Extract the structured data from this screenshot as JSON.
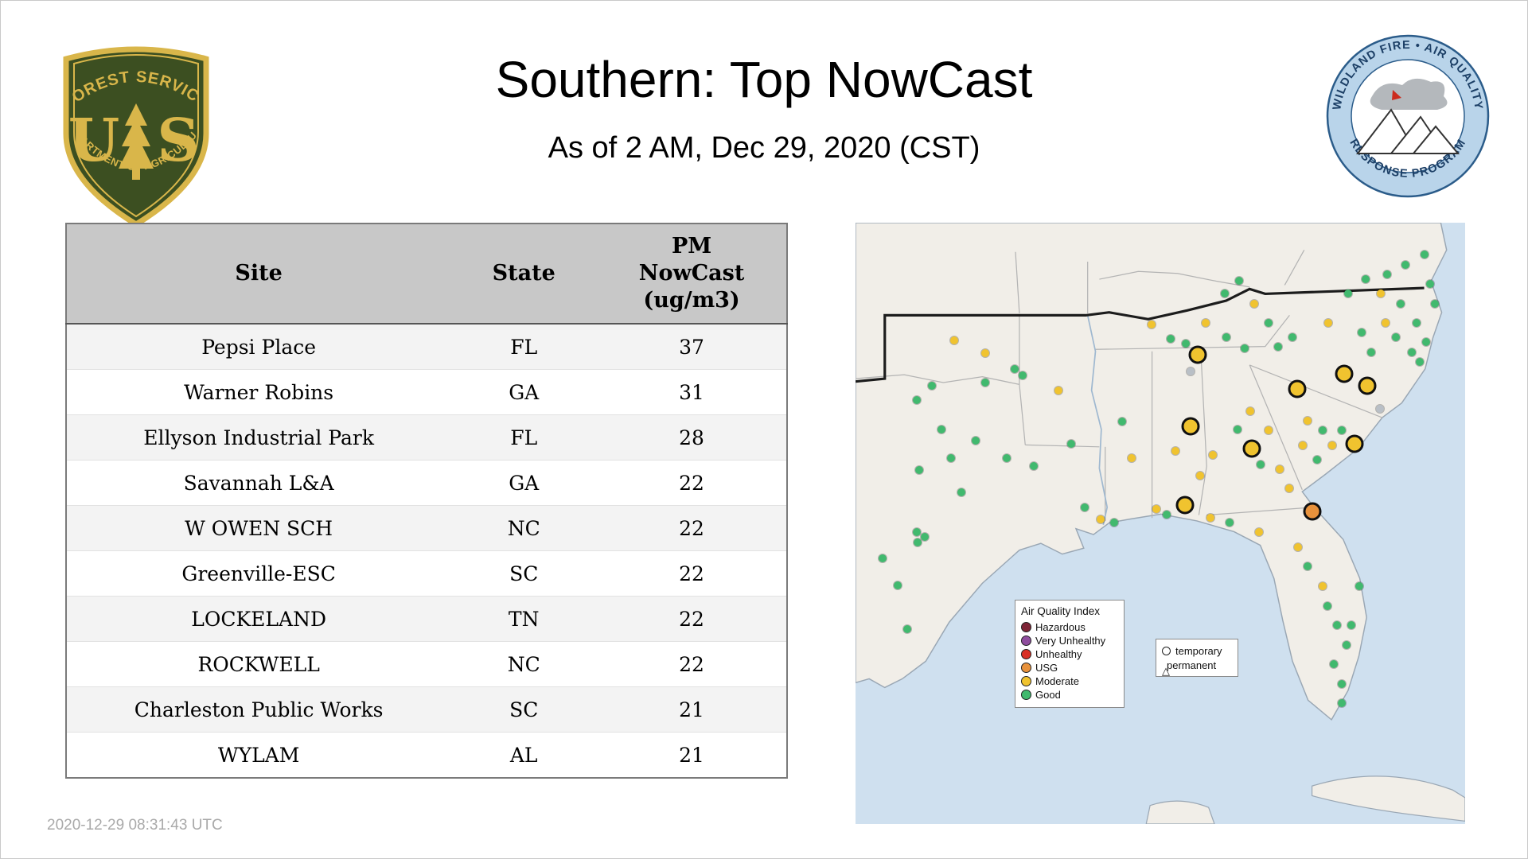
{
  "header": {
    "title": "Southern: Top NowCast",
    "subtitle": "As of  2 AM, Dec 29, 2020 (CST)"
  },
  "logos": {
    "forest_service": {
      "text_top": "FOREST SERVICE",
      "letter_left": "U",
      "letter_right": "S",
      "text_bottom": "DEPARTMENT OF AGRICULTURE",
      "shield_color": "#3c4f21",
      "gold_color": "#d9b64a"
    },
    "airfire": {
      "text_top": "WILDLAND FIRE • AIR QUALITY",
      "text_bottom": "RESPONSE PROGRAM",
      "ring_color": "#b9d4ea",
      "text_color": "#1c3f66"
    }
  },
  "table": {
    "headers": [
      "Site",
      "State",
      "PM\nNowCast\n(ug/m3)"
    ],
    "rows": [
      [
        "Pepsi Place",
        "FL",
        "37"
      ],
      [
        "Warner Robins",
        "GA",
        "31"
      ],
      [
        "Ellyson Industrial Park",
        "FL",
        "28"
      ],
      [
        "Savannah L&A",
        "GA",
        "22"
      ],
      [
        "W OWEN SCH",
        "NC",
        "22"
      ],
      [
        "Greenville-ESC",
        "SC",
        "22"
      ],
      [
        "LOCKELAND",
        "TN",
        "22"
      ],
      [
        "ROCKWELL",
        "NC",
        "22"
      ],
      [
        "Charleston Public Works",
        "SC",
        "21"
      ],
      [
        "WYLAM",
        "AL",
        "21"
      ]
    ]
  },
  "map": {
    "colors": {
      "good": "#41b96e",
      "moderate": "#f0c32f",
      "usg": "#e8923c",
      "nodata": "#b9bfc6"
    },
    "aqi_legend": {
      "title": "Air Quality Index",
      "items": [
        {
          "label": "Hazardous",
          "color": "#7e2436"
        },
        {
          "label": "Very Unhealthy",
          "color": "#8f4d9e"
        },
        {
          "label": "Unhealthy",
          "color": "#d93025"
        },
        {
          "label": "USG",
          "color": "#e8923c"
        },
        {
          "label": "Moderate",
          "color": "#f0c32f"
        },
        {
          "label": "Good",
          "color": "#41b96e"
        }
      ]
    },
    "symbol_legend": {
      "temporary": "temporary",
      "permanent": "permanent"
    },
    "dots": [
      [
        12.5,
        27.1,
        "good"
      ],
      [
        16.2,
        19.6,
        "moderate"
      ],
      [
        21.3,
        21.7,
        "moderate"
      ],
      [
        26.1,
        24.3,
        "good"
      ],
      [
        10.1,
        29.5,
        "good"
      ],
      [
        21.3,
        26.6,
        "good"
      ],
      [
        27.4,
        25.4,
        "good"
      ],
      [
        14.1,
        34.4,
        "good"
      ],
      [
        19.7,
        36.3,
        "good"
      ],
      [
        15.7,
        39.2,
        "good"
      ],
      [
        10.4,
        41.2,
        "good"
      ],
      [
        24.8,
        39.2,
        "good"
      ],
      [
        17.3,
        44.9,
        "good"
      ],
      [
        29.3,
        40.5,
        "good"
      ],
      [
        10.1,
        51.4,
        "good"
      ],
      [
        11.4,
        52.3,
        "good"
      ],
      [
        10.2,
        53.2,
        "good"
      ],
      [
        6.9,
        60.3,
        "good"
      ],
      [
        8.5,
        67.6,
        "good"
      ],
      [
        4.5,
        55.8,
        "good"
      ],
      [
        33.3,
        27.9,
        "moderate"
      ],
      [
        35.4,
        36.8,
        "good"
      ],
      [
        37.6,
        47.3,
        "good"
      ],
      [
        40.2,
        49.3,
        "moderate"
      ],
      [
        42.4,
        49.9,
        "good"
      ],
      [
        45.3,
        39.2,
        "moderate"
      ],
      [
        43.7,
        33.1,
        "good"
      ],
      [
        49.3,
        47.6,
        "moderate"
      ],
      [
        51.0,
        48.5,
        "good"
      ],
      [
        52.5,
        37.9,
        "moderate"
      ],
      [
        56.5,
        42.0,
        "moderate"
      ],
      [
        58.6,
        38.6,
        "moderate"
      ],
      [
        48.5,
        16.9,
        "moderate"
      ],
      [
        51.7,
        19.3,
        "good"
      ],
      [
        54.2,
        20.1,
        "good"
      ],
      [
        57.4,
        16.7,
        "moderate"
      ],
      [
        60.6,
        11.8,
        "good"
      ],
      [
        62.9,
        9.6,
        "good"
      ],
      [
        65.4,
        13.5,
        "moderate"
      ],
      [
        67.7,
        16.7,
        "good"
      ],
      [
        60.8,
        19.1,
        "good"
      ],
      [
        63.8,
        20.9,
        "good"
      ],
      [
        69.3,
        20.6,
        "good"
      ],
      [
        71.7,
        19.0,
        "good"
      ],
      [
        64.8,
        31.4,
        "moderate"
      ],
      [
        67.7,
        34.5,
        "moderate"
      ],
      [
        66.4,
        40.2,
        "good"
      ],
      [
        69.6,
        41.0,
        "moderate"
      ],
      [
        71.2,
        44.2,
        "moderate"
      ],
      [
        73.4,
        37.0,
        "moderate"
      ],
      [
        75.7,
        39.4,
        "good"
      ],
      [
        62.6,
        34.4,
        "good"
      ],
      [
        80.8,
        11.8,
        "good"
      ],
      [
        83.7,
        9.4,
        "good"
      ],
      [
        87.2,
        8.6,
        "good"
      ],
      [
        90.2,
        7.0,
        "good"
      ],
      [
        86.2,
        11.8,
        "moderate"
      ],
      [
        89.4,
        13.5,
        "good"
      ],
      [
        92.0,
        16.7,
        "good"
      ],
      [
        94.2,
        10.2,
        "good"
      ],
      [
        93.4,
        5.3,
        "good"
      ],
      [
        95.0,
        13.5,
        "good"
      ],
      [
        88.6,
        19.1,
        "good"
      ],
      [
        91.2,
        21.6,
        "good"
      ],
      [
        93.6,
        19.9,
        "good"
      ],
      [
        92.5,
        23.2,
        "good"
      ],
      [
        87.0,
        16.7,
        "moderate"
      ],
      [
        83.0,
        18.3,
        "good"
      ],
      [
        84.6,
        21.6,
        "good"
      ],
      [
        77.6,
        16.7,
        "moderate"
      ],
      [
        74.2,
        32.9,
        "moderate"
      ],
      [
        76.6,
        34.5,
        "good"
      ],
      [
        78.2,
        37.0,
        "moderate"
      ],
      [
        79.8,
        34.5,
        "good"
      ],
      [
        58.2,
        49.1,
        "moderate"
      ],
      [
        61.4,
        49.9,
        "good"
      ],
      [
        66.2,
        51.5,
        "moderate"
      ],
      [
        72.6,
        54.0,
        "moderate"
      ],
      [
        74.2,
        57.2,
        "good"
      ],
      [
        76.6,
        60.5,
        "moderate"
      ],
      [
        77.4,
        63.7,
        "good"
      ],
      [
        79.0,
        66.9,
        "good"
      ],
      [
        80.6,
        70.2,
        "good"
      ],
      [
        78.5,
        73.4,
        "good"
      ],
      [
        79.8,
        76.7,
        "good"
      ],
      [
        79.8,
        79.9,
        "good"
      ],
      [
        81.3,
        66.9,
        "good"
      ],
      [
        82.6,
        60.5,
        "good"
      ],
      [
        80.6,
        25.6,
        "nodata"
      ],
      [
        55.0,
        24.8,
        "nodata"
      ],
      [
        86.0,
        31.0,
        "nodata"
      ],
      [
        56.2,
        21.9,
        "moderate",
        "large"
      ],
      [
        72.5,
        27.6,
        "moderate",
        "large"
      ],
      [
        80.2,
        25.1,
        "moderate",
        "large"
      ],
      [
        84.0,
        27.1,
        "moderate",
        "large"
      ],
      [
        54.9,
        33.9,
        "moderate",
        "large"
      ],
      [
        65.0,
        37.6,
        "moderate",
        "large"
      ],
      [
        81.8,
        36.8,
        "moderate",
        "large"
      ],
      [
        54.1,
        47.0,
        "moderate",
        "large"
      ],
      [
        74.9,
        48.0,
        "usg",
        "large"
      ]
    ]
  },
  "footer": {
    "timestamp": "2020-12-29 08:31:43 UTC"
  }
}
